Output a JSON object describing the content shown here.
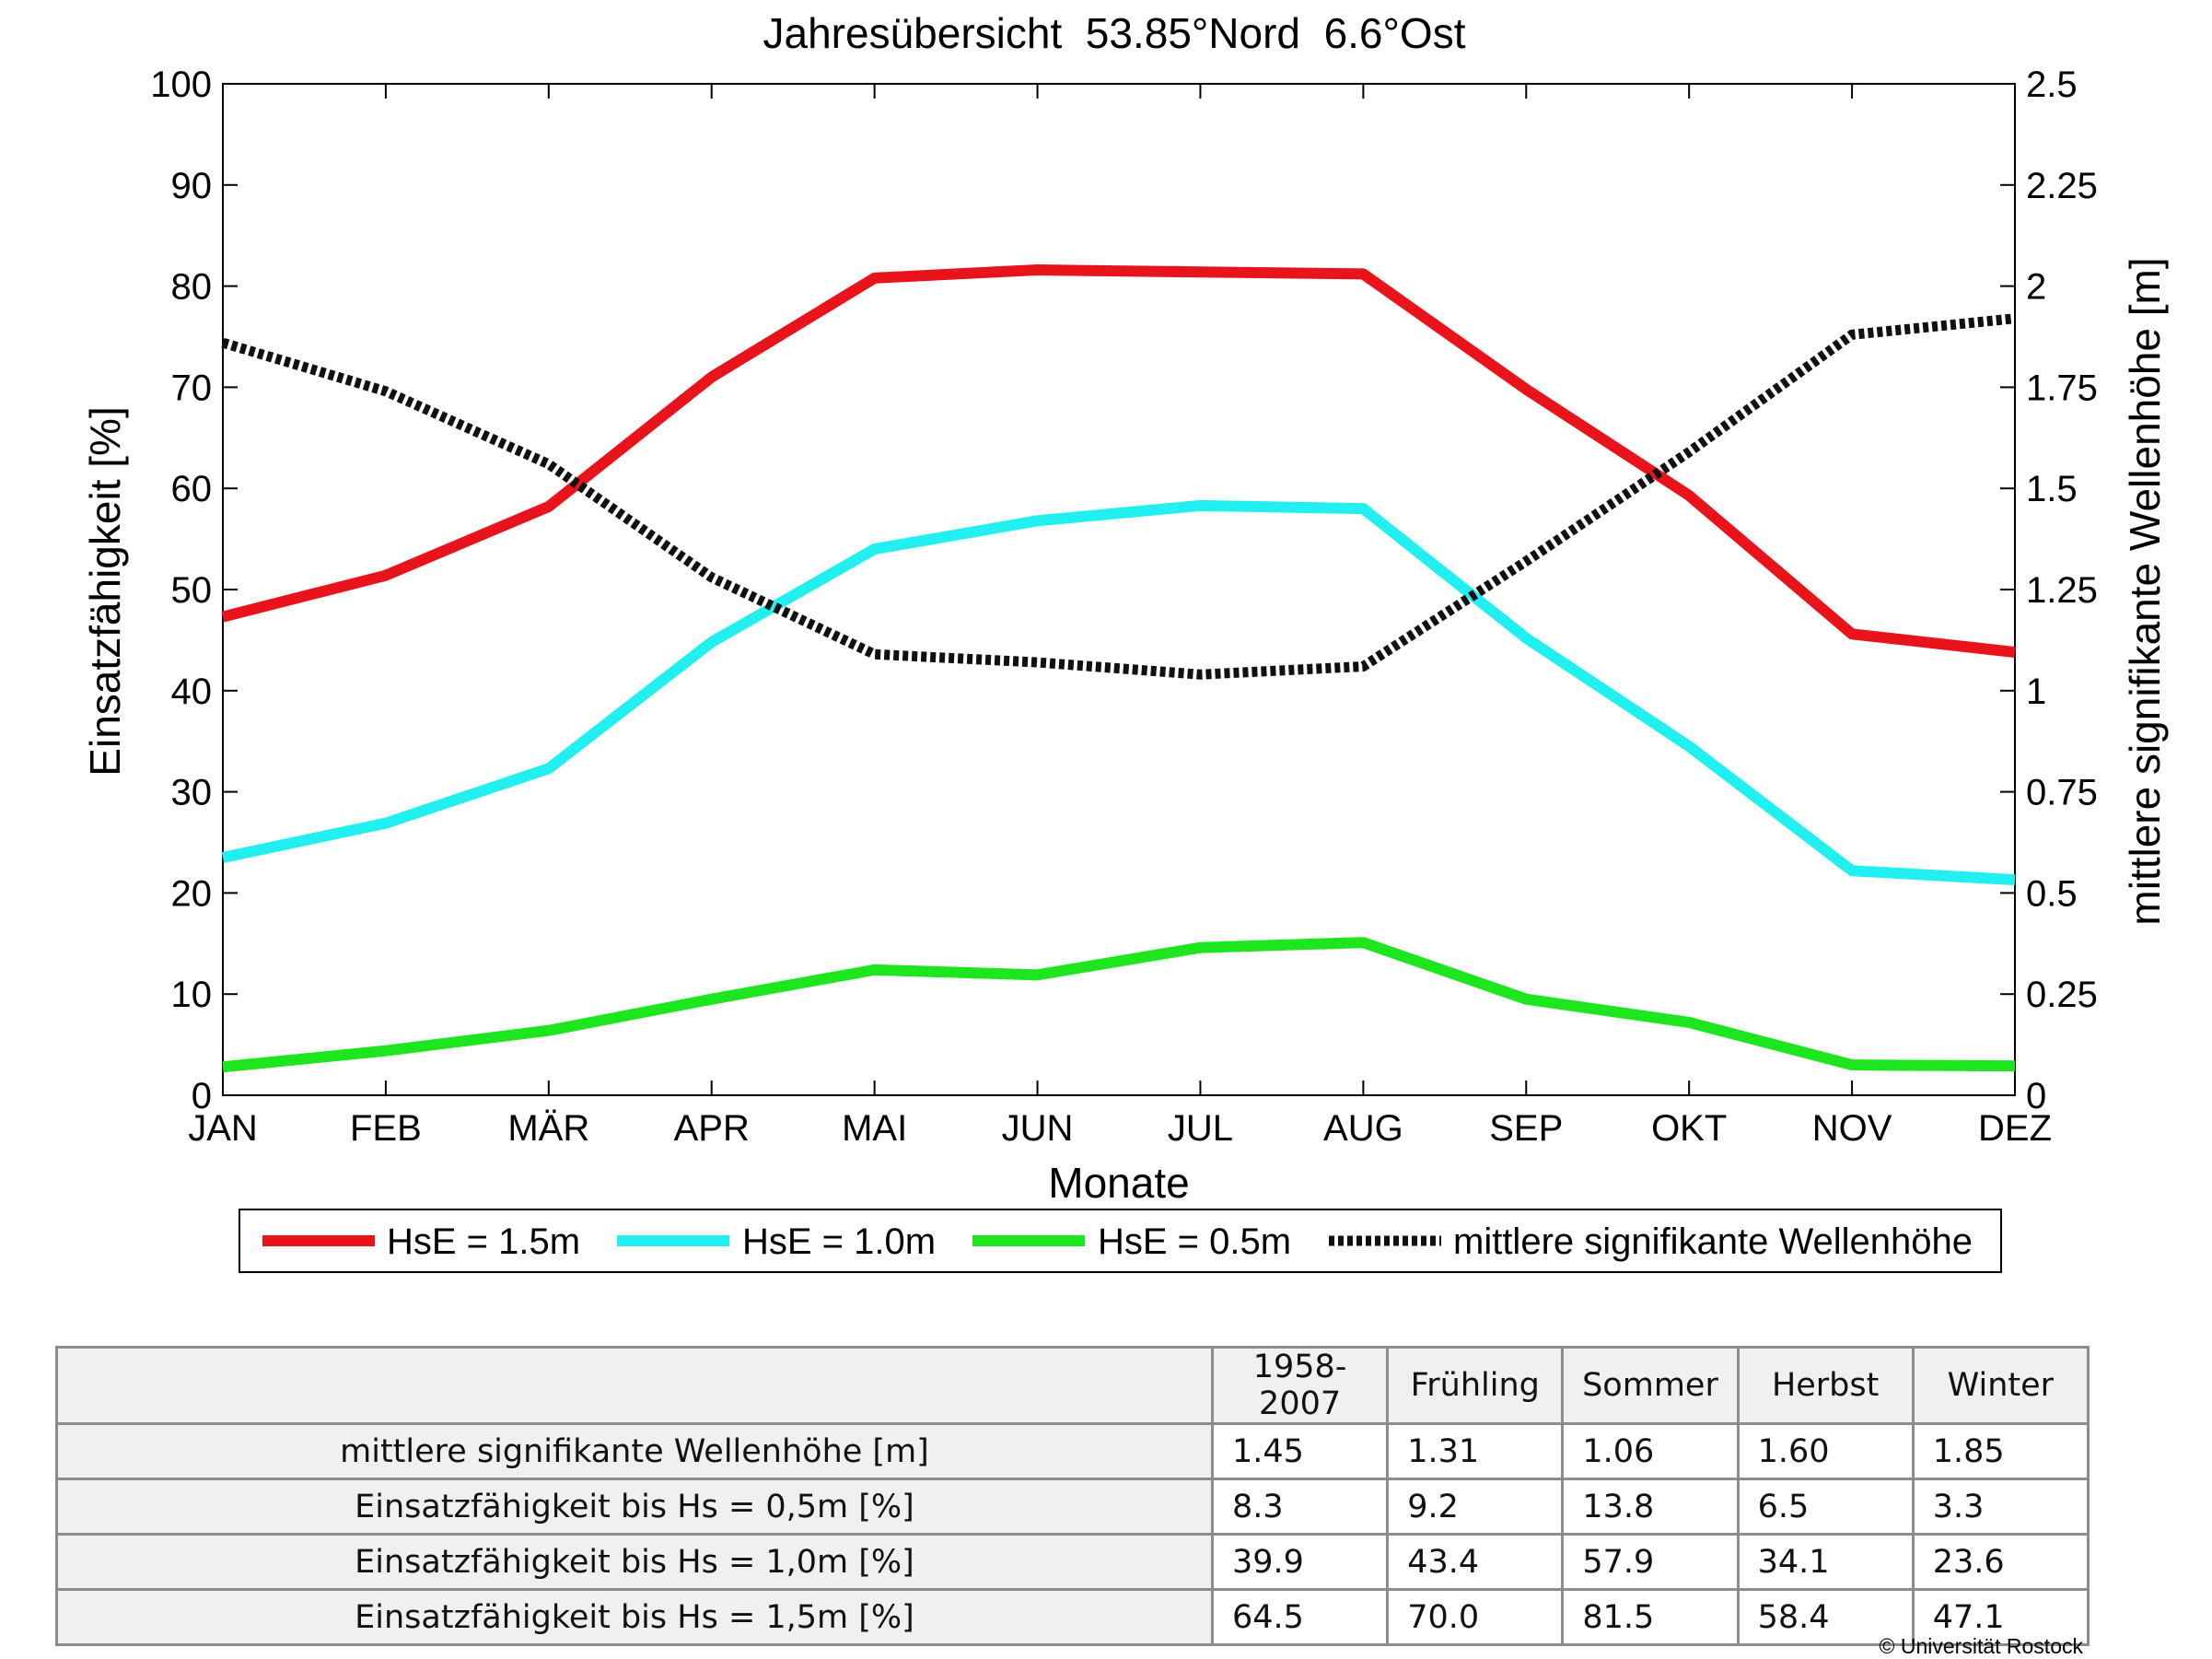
{
  "chart_data": {
    "type": "line",
    "title": "Jahresübersicht  53.85°Nord  6.6°Ost",
    "xlabel": "Monate",
    "ylabel": "Einsatzfähigkeit [%]",
    "y2label": "mittlere signifikante Wellenhöhe [m]",
    "categories": [
      "JAN",
      "FEB",
      "MÄR",
      "APR",
      "MAI",
      "JUN",
      "JUL",
      "AUG",
      "SEP",
      "OKT",
      "NOV",
      "DEZ"
    ],
    "ylim": [
      0,
      100
    ],
    "y2lim": [
      0,
      2.5
    ],
    "yticks": [
      "0",
      "10",
      "20",
      "30",
      "40",
      "50",
      "60",
      "70",
      "80",
      "90",
      "100"
    ],
    "y2ticks": [
      "0",
      "0.25",
      "0.5",
      "0.75",
      "1",
      "1.25",
      "1.5",
      "1.75",
      "2",
      "2.25",
      "2.5"
    ],
    "grid": false,
    "legend_position": "bottom",
    "series": [
      {
        "name": "HsE = 1.5m",
        "axis": "left",
        "color": "#e8131b",
        "style": "solid",
        "values": [
          47.3,
          51.4,
          58.2,
          71.0,
          80.8,
          81.6,
          81.4,
          81.2,
          69.8,
          59.3,
          45.6,
          43.8
        ]
      },
      {
        "name": "HsE = 1.0m",
        "axis": "left",
        "color": "#22f0f0",
        "style": "solid",
        "values": [
          23.5,
          26.9,
          32.3,
          44.8,
          54.0,
          56.8,
          58.3,
          58.0,
          45.2,
          34.5,
          22.2,
          21.3
        ]
      },
      {
        "name": "HsE = 0.5m",
        "axis": "left",
        "color": "#1ee61e",
        "style": "solid",
        "values": [
          2.8,
          4.4,
          6.4,
          9.5,
          12.4,
          11.9,
          14.6,
          15.1,
          9.5,
          7.2,
          3.0,
          2.9
        ]
      },
      {
        "name": "mittlere signifikante Wellenhöhe",
        "axis": "right",
        "color": "#111111",
        "style": "dotted",
        "values": [
          1.86,
          1.74,
          1.56,
          1.28,
          1.09,
          1.07,
          1.04,
          1.06,
          1.32,
          1.59,
          1.88,
          1.92
        ]
      }
    ]
  },
  "table": {
    "headers": [
      "1958-2007",
      "Frühling",
      "Sommer",
      "Herbst",
      "Winter"
    ],
    "rows": [
      {
        "label": "mittlere signifikante Wellenhöhe [m]",
        "values": [
          "1.45",
          "1.31",
          "1.06",
          "1.60",
          "1.85"
        ]
      },
      {
        "label": "Einsatzfähigkeit bis Hs = 0,5m [%]",
        "values": [
          "8.3",
          "9.2",
          "13.8",
          "6.5",
          "3.3"
        ]
      },
      {
        "label": "Einsatzfähigkeit bis Hs = 1,0m [%]",
        "values": [
          "39.9",
          "43.4",
          "57.9",
          "34.1",
          "23.6"
        ]
      },
      {
        "label": "Einsatzfähigkeit bis Hs = 1,5m [%]",
        "values": [
          "64.5",
          "70.0",
          "81.5",
          "58.4",
          "47.1"
        ]
      }
    ]
  },
  "copyright": "© Universität Rostock"
}
